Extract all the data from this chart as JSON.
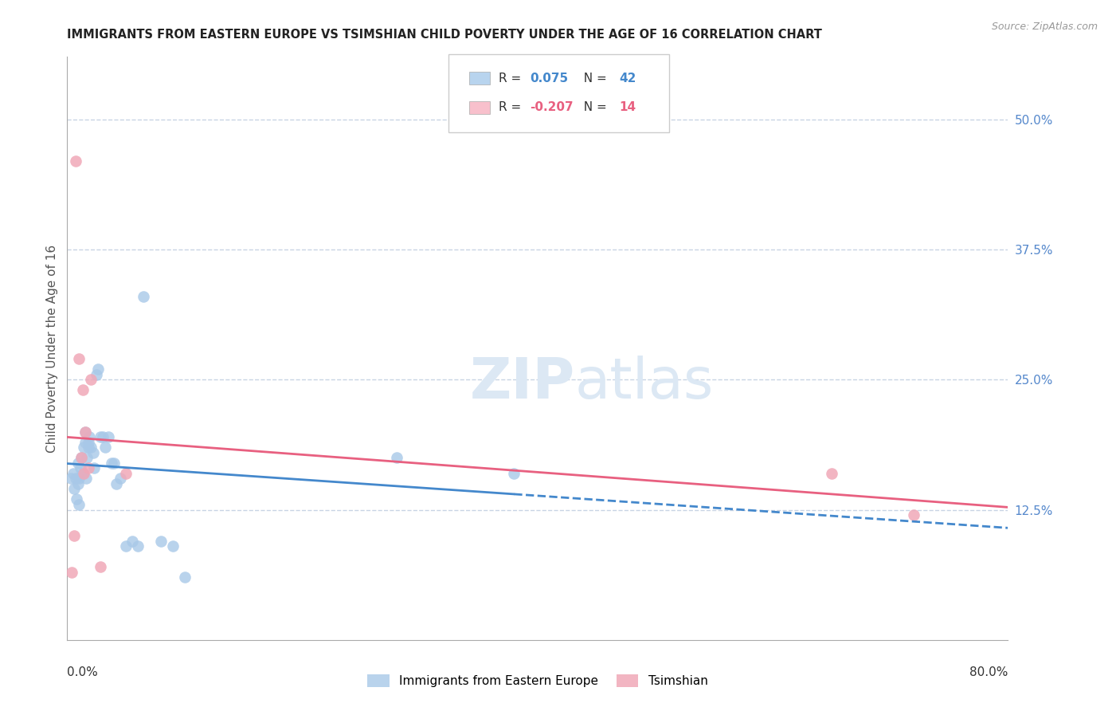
{
  "title": "IMMIGRANTS FROM EASTERN EUROPE VS TSIMSHIAN CHILD POVERTY UNDER THE AGE OF 16 CORRELATION CHART",
  "source": "Source: ZipAtlas.com",
  "ylabel": "Child Poverty Under the Age of 16",
  "xlim": [
    0.0,
    0.8
  ],
  "ylim": [
    0.0,
    0.56
  ],
  "blue_R": 0.075,
  "blue_N": 42,
  "pink_R": -0.207,
  "pink_N": 14,
  "blue_color": "#a8c8e8",
  "pink_color": "#f0a8b8",
  "blue_line_color": "#4488cc",
  "pink_line_color": "#e86080",
  "legend_blue_face": "#b8d4ee",
  "legend_pink_face": "#f8c0cc",
  "background_color": "#ffffff",
  "grid_color": "#c8d4e4",
  "watermark_color": "#dce8f4",
  "blue_points_x": [
    0.003,
    0.005,
    0.006,
    0.007,
    0.008,
    0.009,
    0.009,
    0.01,
    0.01,
    0.011,
    0.012,
    0.013,
    0.014,
    0.015,
    0.015,
    0.016,
    0.017,
    0.018,
    0.018,
    0.019,
    0.02,
    0.022,
    0.023,
    0.025,
    0.026,
    0.028,
    0.03,
    0.032,
    0.035,
    0.038,
    0.04,
    0.042,
    0.045,
    0.05,
    0.055,
    0.06,
    0.065,
    0.08,
    0.09,
    0.1,
    0.28,
    0.38
  ],
  "blue_points_y": [
    0.155,
    0.16,
    0.145,
    0.155,
    0.135,
    0.17,
    0.15,
    0.155,
    0.13,
    0.165,
    0.175,
    0.16,
    0.185,
    0.19,
    0.2,
    0.155,
    0.175,
    0.19,
    0.185,
    0.195,
    0.185,
    0.18,
    0.165,
    0.255,
    0.26,
    0.195,
    0.195,
    0.185,
    0.195,
    0.17,
    0.17,
    0.15,
    0.155,
    0.09,
    0.095,
    0.09,
    0.33,
    0.095,
    0.09,
    0.06,
    0.175,
    0.16
  ],
  "pink_points_x": [
    0.004,
    0.006,
    0.007,
    0.01,
    0.012,
    0.013,
    0.014,
    0.015,
    0.018,
    0.02,
    0.028,
    0.05,
    0.65,
    0.72
  ],
  "pink_points_y": [
    0.065,
    0.1,
    0.46,
    0.27,
    0.175,
    0.24,
    0.16,
    0.2,
    0.165,
    0.25,
    0.07,
    0.16,
    0.16,
    0.12
  ],
  "blue_scatter_size": 110,
  "pink_scatter_size": 110,
  "grid_ytick_values": [
    0.125,
    0.25,
    0.375,
    0.5
  ],
  "right_ytick_values": [
    0.125,
    0.25,
    0.375,
    0.5
  ],
  "right_ytick_labels": [
    "12.5%",
    "25.0%",
    "37.5%",
    "50.0%"
  ]
}
